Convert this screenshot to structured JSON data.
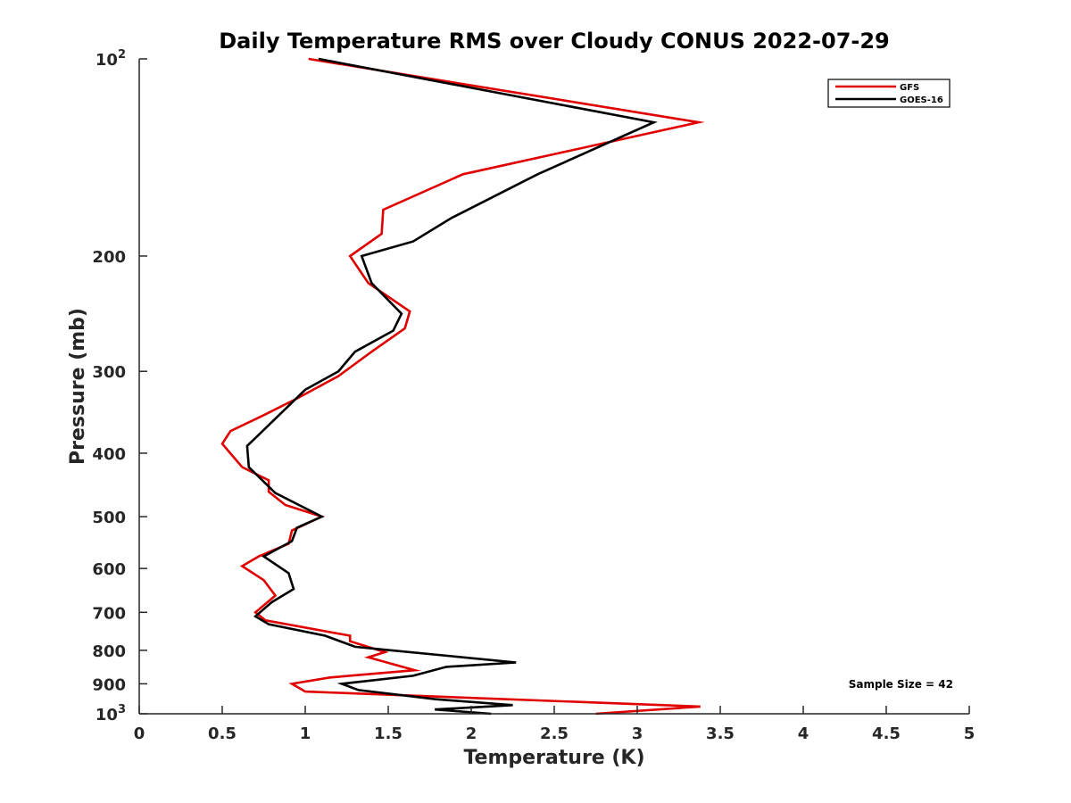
{
  "chart_data": {
    "type": "line",
    "title": "Daily Temperature RMS over Cloudy CONUS 2022-07-29",
    "xlabel": "Temperature (K)",
    "ylabel": "Pressure (mb)",
    "xlim": [
      0,
      5
    ],
    "ylim": [
      100,
      1000
    ],
    "y_scale": "log",
    "y_reversed": true,
    "grid": false,
    "legend_position": "top-right",
    "x_ticks": [
      {
        "value": 0,
        "label": "0"
      },
      {
        "value": 0.5,
        "label": "0.5"
      },
      {
        "value": 1,
        "label": "1"
      },
      {
        "value": 1.5,
        "label": "1.5"
      },
      {
        "value": 2,
        "label": "2"
      },
      {
        "value": 2.5,
        "label": "2.5"
      },
      {
        "value": 3,
        "label": "3"
      },
      {
        "value": 3.5,
        "label": "3.5"
      },
      {
        "value": 4,
        "label": "4"
      },
      {
        "value": 4.5,
        "label": "4.5"
      },
      {
        "value": 5,
        "label": "5"
      }
    ],
    "y_ticks": [
      {
        "value": 100,
        "label": "10",
        "exp": "2"
      },
      {
        "value": 200,
        "label": "200"
      },
      {
        "value": 300,
        "label": "300"
      },
      {
        "value": 400,
        "label": "400"
      },
      {
        "value": 500,
        "label": "500"
      },
      {
        "value": 600,
        "label": "600"
      },
      {
        "value": 700,
        "label": "700"
      },
      {
        "value": 800,
        "label": "800"
      },
      {
        "value": 900,
        "label": "900"
      },
      {
        "value": 1000,
        "label": "10",
        "exp": "3"
      }
    ],
    "series": [
      {
        "name": "GFS",
        "color": "#e00000",
        "points": [
          [
            1.02,
            100
          ],
          [
            3.37,
            125
          ],
          [
            1.95,
            150
          ],
          [
            1.47,
            170
          ],
          [
            1.46,
            185
          ],
          [
            1.27,
            200
          ],
          [
            1.38,
            220
          ],
          [
            1.63,
            243
          ],
          [
            1.6,
            258
          ],
          [
            1.4,
            280
          ],
          [
            1.2,
            305
          ],
          [
            0.95,
            330
          ],
          [
            0.75,
            350
          ],
          [
            0.55,
            370
          ],
          [
            0.5,
            387
          ],
          [
            0.62,
            420
          ],
          [
            0.78,
            440
          ],
          [
            0.78,
            458
          ],
          [
            0.88,
            480
          ],
          [
            1.1,
            500
          ],
          [
            0.92,
            525
          ],
          [
            0.9,
            550
          ],
          [
            0.72,
            575
          ],
          [
            0.62,
            595
          ],
          [
            0.75,
            625
          ],
          [
            0.82,
            660
          ],
          [
            0.7,
            700
          ],
          [
            0.76,
            720
          ],
          [
            1.27,
            760
          ],
          [
            1.27,
            775
          ],
          [
            1.48,
            805
          ],
          [
            1.38,
            820
          ],
          [
            1.66,
            858
          ],
          [
            1.15,
            880
          ],
          [
            0.92,
            900
          ],
          [
            1.0,
            925
          ],
          [
            3.38,
            975
          ],
          [
            2.75,
            1000
          ]
        ]
      },
      {
        "name": "GOES-16",
        "color": "#000000",
        "points": [
          [
            1.08,
            100
          ],
          [
            3.1,
            125
          ],
          [
            2.4,
            150
          ],
          [
            1.88,
            175
          ],
          [
            1.65,
            190
          ],
          [
            1.34,
            200
          ],
          [
            1.4,
            220
          ],
          [
            1.58,
            245
          ],
          [
            1.53,
            260
          ],
          [
            1.3,
            280
          ],
          [
            1.2,
            300
          ],
          [
            1.0,
            320
          ],
          [
            0.72,
            375
          ],
          [
            0.65,
            390
          ],
          [
            0.66,
            420
          ],
          [
            0.82,
            460
          ],
          [
            1.1,
            500
          ],
          [
            0.95,
            520
          ],
          [
            0.92,
            545
          ],
          [
            0.75,
            575
          ],
          [
            0.9,
            610
          ],
          [
            0.93,
            645
          ],
          [
            0.8,
            675
          ],
          [
            0.7,
            710
          ],
          [
            0.78,
            730
          ],
          [
            1.12,
            760
          ],
          [
            1.3,
            790
          ],
          [
            1.52,
            800
          ],
          [
            2.27,
            835
          ],
          [
            1.85,
            848
          ],
          [
            1.65,
            875
          ],
          [
            1.22,
            900
          ],
          [
            1.32,
            920
          ],
          [
            1.78,
            950
          ],
          [
            2.25,
            970
          ],
          [
            1.78,
            985
          ],
          [
            2.12,
            1000
          ]
        ]
      }
    ],
    "annotations": [
      "Sample Size = 42"
    ]
  }
}
